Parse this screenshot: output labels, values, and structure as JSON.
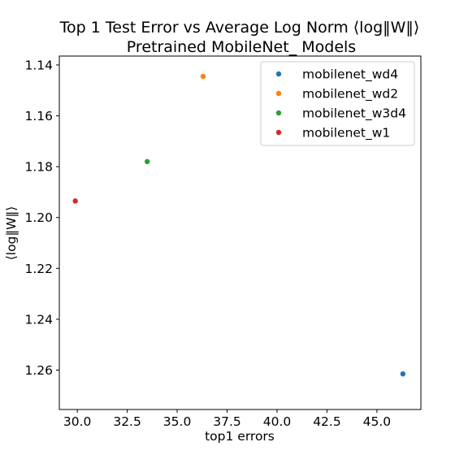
{
  "chart_data": {
    "type": "scatter",
    "title": "Top 1 Test Error vs  Average Log Norm ⟨log‖W‖⟩",
    "subtitle": "Pretrained MobileNet_ Models",
    "xlabel": "top1 errors",
    "ylabel": "⟨log‖W‖⟩",
    "xlim": [
      29.1,
      47.2
    ],
    "ylim": [
      1.2755,
      1.1365
    ],
    "y_inverted": true,
    "xticks": [
      "30.0",
      "32.5",
      "35.0",
      "37.5",
      "40.0",
      "42.5",
      "45.0"
    ],
    "xtick_values": [
      30.0,
      32.5,
      35.0,
      37.5,
      40.0,
      42.5,
      45.0
    ],
    "yticks": [
      "1.14",
      "1.16",
      "1.18",
      "1.20",
      "1.22",
      "1.24",
      "1.26"
    ],
    "ytick_values": [
      1.14,
      1.16,
      1.18,
      1.2,
      1.22,
      1.24,
      1.26
    ],
    "grid": false,
    "legend_position": "top-right",
    "series": [
      {
        "name": "mobilenet_wd4",
        "color": "#1f77b4",
        "x": [
          46.3
        ],
        "y": [
          1.2615
        ]
      },
      {
        "name": "mobilenet_wd2",
        "color": "#ff7f0e",
        "x": [
          36.3
        ],
        "y": [
          1.1445
        ]
      },
      {
        "name": "mobilenet_w3d4",
        "color": "#2ca02c",
        "x": [
          33.5
        ],
        "y": [
          1.178
        ]
      },
      {
        "name": "mobilenet_w1",
        "color": "#d62728",
        "x": [
          29.9
        ],
        "y": [
          1.1935
        ]
      }
    ]
  }
}
